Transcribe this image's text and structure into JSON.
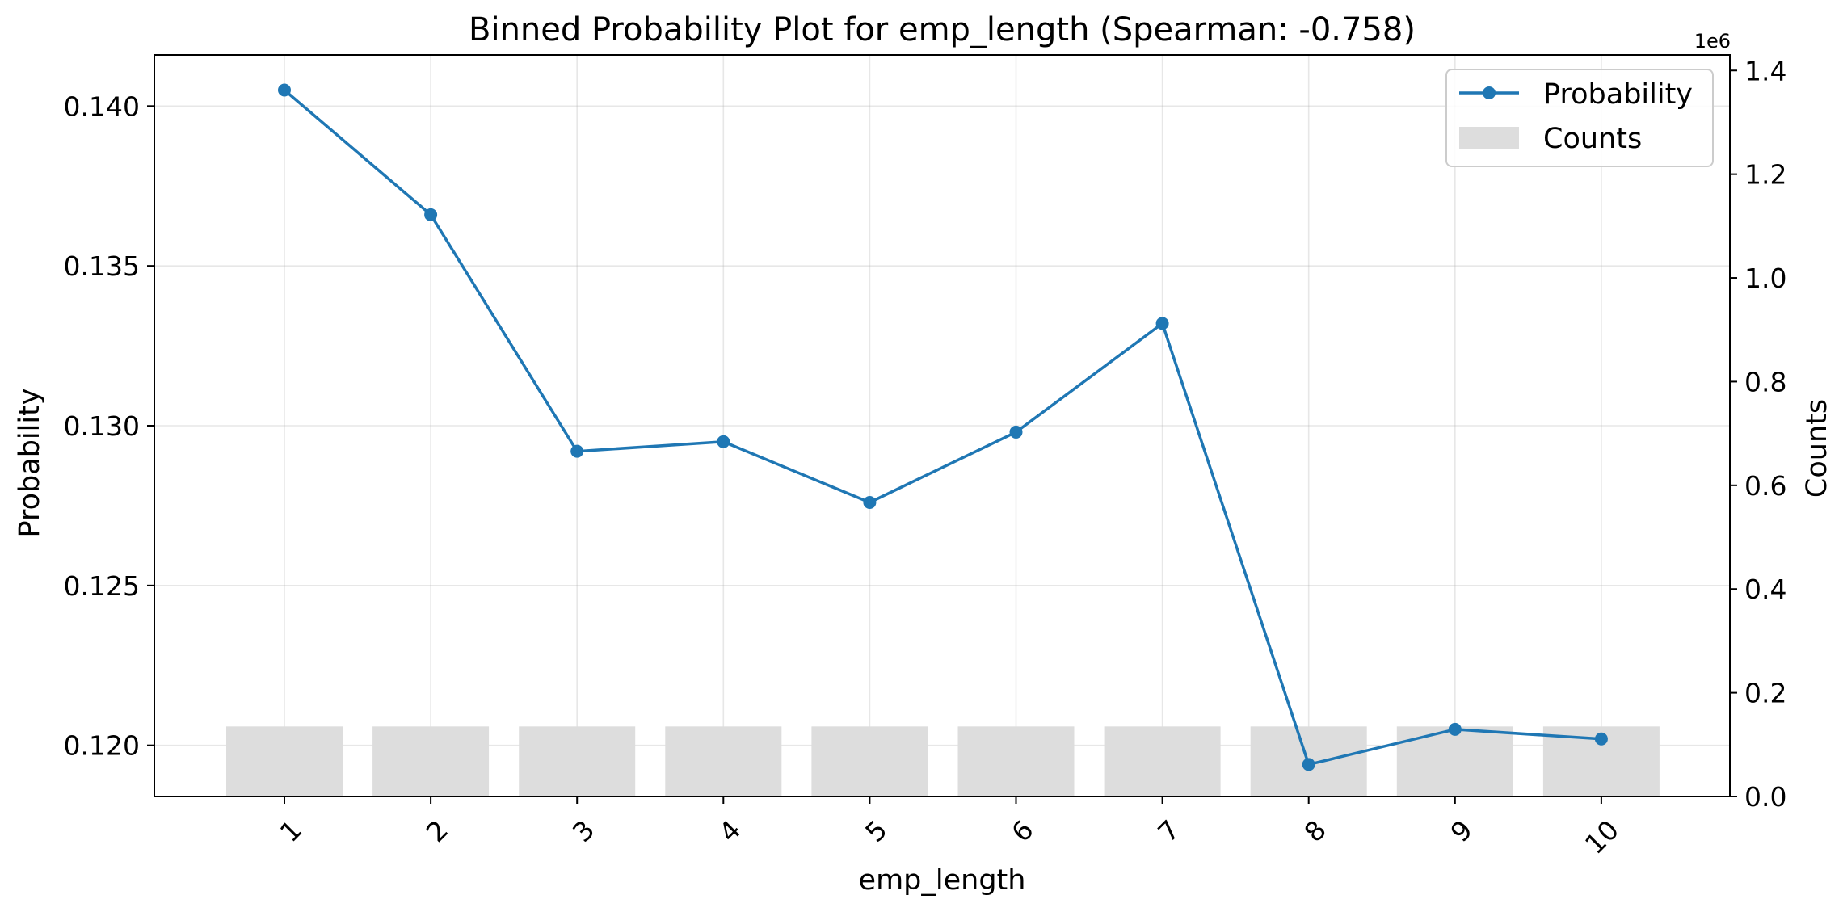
{
  "chart_data": {
    "type": "line+bar",
    "title": "Binned Probability Plot for emp_length (Spearman: -0.758)",
    "xlabel": "emp_length",
    "ylabel": "Probability",
    "y2label": "Counts",
    "y2_offset_text": "1e6",
    "categories": [
      "1",
      "2",
      "3",
      "4",
      "5",
      "6",
      "7",
      "8",
      "9",
      "10"
    ],
    "series": [
      {
        "name": "Probability",
        "kind": "line",
        "axis": "left",
        "color": "#1f77b4",
        "values": [
          0.1405,
          0.1366,
          0.1292,
          0.1295,
          0.1276,
          0.1298,
          0.1332,
          0.1194,
          0.1205,
          0.1202
        ]
      },
      {
        "name": "Counts",
        "kind": "bar",
        "axis": "right",
        "color": "#dddddd",
        "values": [
          135000,
          135000,
          135000,
          135000,
          135000,
          135000,
          135000,
          135000,
          135000,
          135000
        ]
      }
    ],
    "ylim": [
      0.1184,
      0.1416
    ],
    "y2lim": [
      0,
      1430000
    ],
    "yticks": [
      0.12,
      0.125,
      0.13,
      0.135,
      0.14
    ],
    "ytick_labels": [
      "0.120",
      "0.125",
      "0.130",
      "0.135",
      "0.140"
    ],
    "y2ticks": [
      0,
      200000,
      400000,
      600000,
      800000,
      1000000,
      1200000,
      1400000
    ],
    "y2tick_labels": [
      "0.0",
      "0.2",
      "0.4",
      "0.6",
      "0.8",
      "1.0",
      "1.2",
      "1.4"
    ],
    "grid": true,
    "legend_position": "top-right"
  }
}
